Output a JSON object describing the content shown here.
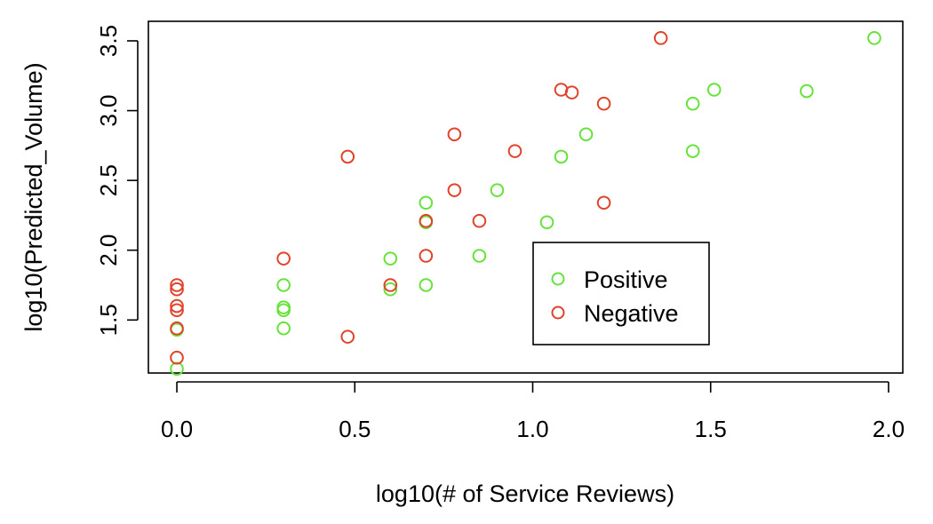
{
  "chart_data": {
    "type": "scatter",
    "title": "",
    "xlabel": "log10(# of Service Reviews)",
    "ylabel": "log10(Predicted_Volume)",
    "xlim": [
      -0.08,
      2.04
    ],
    "ylim": [
      1.12,
      3.64
    ],
    "xticks": [
      0.0,
      0.5,
      1.0,
      1.5,
      2.0
    ],
    "xtick_labels": [
      "0.0",
      "0.5",
      "1.0",
      "1.5",
      "2.0"
    ],
    "yticks": [
      1.5,
      2.0,
      2.5,
      3.0,
      3.5
    ],
    "ytick_labels": [
      "1.5",
      "2.0",
      "2.5",
      "3.0",
      "3.5"
    ],
    "grid": false,
    "legend_position": "inside-lower-right",
    "series": [
      {
        "name": "Positive",
        "color": "#66e23a",
        "marker": "open-circle",
        "points": [
          [
            0.0,
            1.15
          ],
          [
            0.0,
            1.43
          ],
          [
            0.3,
            1.44
          ],
          [
            0.3,
            1.57
          ],
          [
            0.3,
            1.59
          ],
          [
            0.3,
            1.75
          ],
          [
            0.6,
            1.72
          ],
          [
            0.6,
            1.94
          ],
          [
            0.7,
            1.75
          ],
          [
            0.7,
            2.2
          ],
          [
            0.7,
            2.34
          ],
          [
            0.85,
            1.96
          ],
          [
            0.9,
            2.43
          ],
          [
            1.04,
            2.2
          ],
          [
            1.08,
            2.67
          ],
          [
            1.15,
            2.83
          ],
          [
            1.45,
            2.71
          ],
          [
            1.45,
            3.05
          ],
          [
            1.51,
            3.15
          ],
          [
            1.77,
            3.14
          ],
          [
            1.96,
            3.52
          ]
        ]
      },
      {
        "name": "Negative",
        "color": "#e0432a",
        "marker": "open-circle",
        "points": [
          [
            0.0,
            1.23
          ],
          [
            0.0,
            1.44
          ],
          [
            0.0,
            1.57
          ],
          [
            0.0,
            1.6
          ],
          [
            0.0,
            1.72
          ],
          [
            0.0,
            1.75
          ],
          [
            0.3,
            1.94
          ],
          [
            0.48,
            1.38
          ],
          [
            0.48,
            2.67
          ],
          [
            0.6,
            1.75
          ],
          [
            0.7,
            1.96
          ],
          [
            0.7,
            2.21
          ],
          [
            0.78,
            2.43
          ],
          [
            0.78,
            2.83
          ],
          [
            0.85,
            2.21
          ],
          [
            0.95,
            2.71
          ],
          [
            1.08,
            3.15
          ],
          [
            1.11,
            3.13
          ],
          [
            1.2,
            2.34
          ],
          [
            1.2,
            3.05
          ],
          [
            1.36,
            3.52
          ]
        ]
      }
    ]
  }
}
